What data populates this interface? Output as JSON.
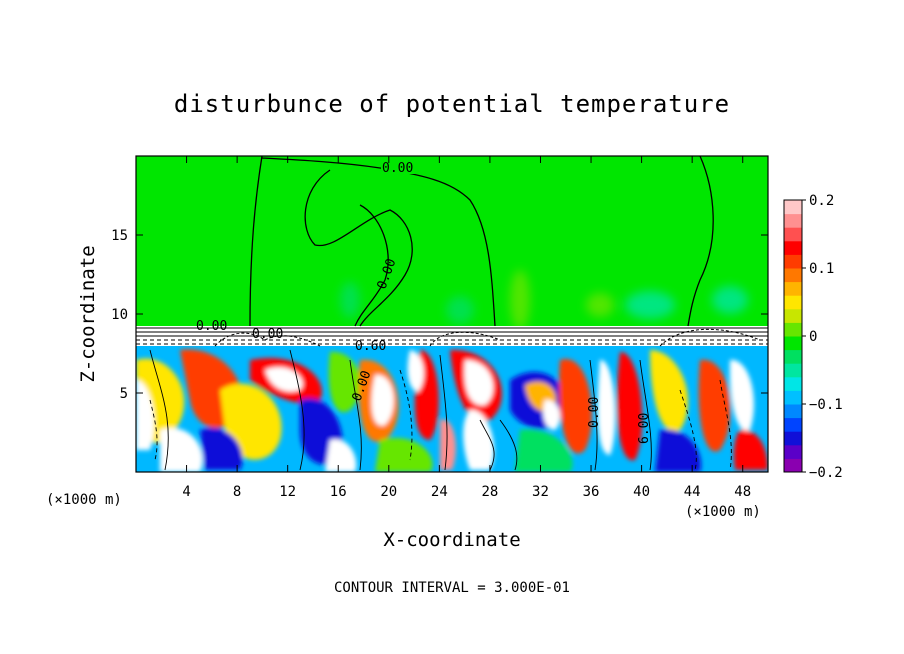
{
  "chart_data": {
    "type": "heatmap",
    "title": "disturbunce of potential temperature",
    "xlabel": "X-coordinate",
    "ylabel": "Z-coordinate",
    "x_unit": "(×1000 m)",
    "y_unit": "(×1000 m)",
    "xlim": [
      0,
      50
    ],
    "ylim": [
      0,
      20
    ],
    "x_ticks": [
      4,
      8,
      12,
      16,
      20,
      24,
      28,
      32,
      36,
      40,
      44,
      48
    ],
    "y_ticks": [
      5,
      10,
      15
    ],
    "colorbar": {
      "range": [
        -0.2,
        0.2
      ],
      "ticks": [
        "0.2",
        "0.1",
        "0",
        "−0.1",
        "−0.2"
      ],
      "colors": [
        "#8a00b0",
        "#5a00c8",
        "#1010d8",
        "#0044ff",
        "#0088ff",
        "#00c0ff",
        "#00e6e6",
        "#00e6a0",
        "#00e060",
        "#00e600",
        "#66e600",
        "#c8e600",
        "#ffe600",
        "#ffb400",
        "#ff7800",
        "#ff3c00",
        "#ff0000",
        "#ff5050",
        "#ff9090",
        "#ffc8c8"
      ]
    },
    "contour_labels": [
      "0.00",
      "0.00",
      "0.00",
      "0.00",
      "0.60",
      "0.00",
      "0.00",
      "6.00"
    ],
    "footer": "CONTOUR INTERVAL = 3.000E-01"
  }
}
